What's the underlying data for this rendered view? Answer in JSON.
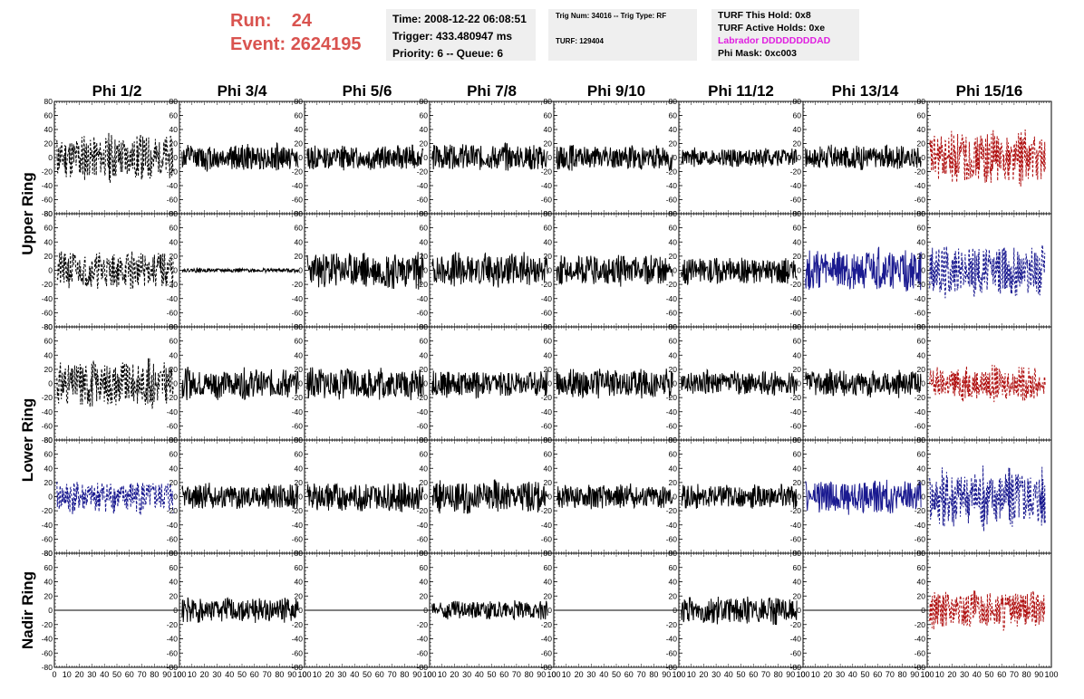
{
  "header": {
    "run_label": "Run:",
    "run_value": "24",
    "event_label": "Event:",
    "event_value": "2624195",
    "time": "Time: 2008-12-22 06:08:51",
    "trigger": "Trigger: 433.480947 ms",
    "priority": "Priority: 6 -- Queue: 6",
    "trig_num": "Trig Num: 34016 -- Trig Type: RF",
    "turf": "TURF: 129404",
    "turf_this_hold": "TURF This Hold: 0x8",
    "turf_active_holds": "TURF Active Holds: 0xe",
    "labrador": "Labrador DDDDDDDDAD",
    "phi_mask": "Phi Mask: 0xc003"
  },
  "columns": [
    "Phi 1/2",
    "Phi 3/4",
    "Phi 5/6",
    "Phi 7/8",
    "Phi 9/10",
    "Phi 11/12",
    "Phi 13/14",
    "Phi 15/16"
  ],
  "row_groups": [
    "Upper Ring",
    "Lower Ring",
    "Nadir Ring"
  ],
  "colors": {
    "normal": "#000000",
    "red": "#b01010",
    "blue": "#1a1a90",
    "run": "#d9534f",
    "labrador": "#e020e0"
  },
  "chart_data": {
    "type": "line",
    "xlim": [
      0,
      100
    ],
    "ylim": [
      -80,
      80
    ],
    "x_ticks": [
      0,
      10,
      20,
      30,
      40,
      50,
      60,
      70,
      80,
      90,
      100
    ],
    "y_ticks": [
      -80,
      -60,
      -40,
      -20,
      0,
      20,
      40,
      60,
      80
    ],
    "x_ticks_last": [
      0,
      10,
      20,
      30,
      40,
      50,
      60,
      70,
      80,
      90,
      100
    ],
    "panels": [
      [
        {
          "style": "black-dash",
          "amp": 35,
          "seed": 11
        },
        {
          "style": "solid",
          "amp": 20,
          "seed": 12
        },
        {
          "style": "solid",
          "amp": 18,
          "seed": 13
        },
        {
          "style": "solid",
          "amp": 20,
          "seed": 14
        },
        {
          "style": "solid",
          "amp": 18,
          "seed": 15
        },
        {
          "style": "solid",
          "amp": 14,
          "seed": 16
        },
        {
          "style": "solid",
          "amp": 18,
          "seed": 17
        },
        {
          "style": "red-dash",
          "amp": 40,
          "seed": 18
        }
      ],
      [
        {
          "style": "black-dash",
          "amp": 28,
          "seed": 21
        },
        {
          "style": "solid",
          "amp": 3,
          "seed": 22
        },
        {
          "style": "solid",
          "amp": 28,
          "seed": 23
        },
        {
          "style": "solid",
          "amp": 25,
          "seed": 24
        },
        {
          "style": "solid",
          "amp": 22,
          "seed": 25
        },
        {
          "style": "solid",
          "amp": 20,
          "seed": 26
        },
        {
          "style": "blue-solid",
          "amp": 30,
          "seed": 27
        },
        {
          "style": "blue-dash",
          "amp": 38,
          "seed": 28
        }
      ],
      [
        {
          "style": "black-dash",
          "amp": 35,
          "seed": 31
        },
        {
          "style": "solid",
          "amp": 22,
          "seed": 32
        },
        {
          "style": "solid",
          "amp": 24,
          "seed": 33
        },
        {
          "style": "solid",
          "amp": 20,
          "seed": 34
        },
        {
          "style": "solid",
          "amp": 22,
          "seed": 35
        },
        {
          "style": "solid",
          "amp": 18,
          "seed": 36
        },
        {
          "style": "solid",
          "amp": 20,
          "seed": 37
        },
        {
          "style": "red-dash",
          "amp": 25,
          "seed": 38
        }
      ],
      [
        {
          "style": "blue-dash",
          "amp": 25,
          "seed": 41
        },
        {
          "style": "solid",
          "amp": 20,
          "seed": 42
        },
        {
          "style": "solid",
          "amp": 22,
          "seed": 43
        },
        {
          "style": "solid",
          "amp": 24,
          "seed": 44
        },
        {
          "style": "solid",
          "amp": 18,
          "seed": 45
        },
        {
          "style": "solid",
          "amp": 18,
          "seed": 46
        },
        {
          "style": "blue-solid",
          "amp": 25,
          "seed": 47
        },
        {
          "style": "blue-dash",
          "amp": 45,
          "seed": 48
        }
      ],
      [
        {
          "style": "flat",
          "amp": 0,
          "seed": 51
        },
        {
          "style": "solid",
          "amp": 18,
          "seed": 52
        },
        {
          "style": "flat",
          "amp": 0,
          "seed": 53
        },
        {
          "style": "solid",
          "amp": 14,
          "seed": 54
        },
        {
          "style": "flat",
          "amp": 0,
          "seed": 55
        },
        {
          "style": "solid",
          "amp": 20,
          "seed": 56
        },
        {
          "style": "flat",
          "amp": 0,
          "seed": 57
        },
        {
          "style": "red-dash",
          "amp": 28,
          "seed": 58
        }
      ]
    ]
  }
}
